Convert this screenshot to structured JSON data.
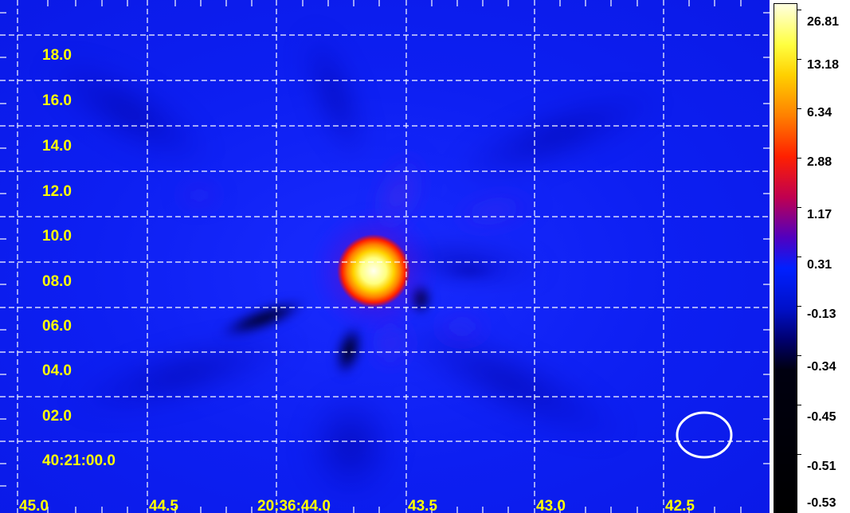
{
  "map": {
    "dec_labels": [
      "18.0",
      "16.0",
      "14.0",
      "12.0",
      "10.0",
      "08.0",
      "06.0",
      "04.0",
      "02.0",
      "40:21:00.0"
    ],
    "ra_labels": [
      "45.0",
      "44.5",
      "20:36:44.0",
      "43.5",
      "43.0",
      "42.5"
    ],
    "label_color": "#ffff00",
    "grid_color": "#ffffff",
    "beam_color": "#ffffff",
    "background_color": "#0a1aff"
  },
  "colorbar": {
    "labels": [
      "26.81",
      "13.18",
      "6.34",
      "2.88",
      "1.17",
      "0.31",
      "-0.13",
      "-0.34",
      "-0.45",
      "-0.51",
      "-0.53"
    ]
  }
}
